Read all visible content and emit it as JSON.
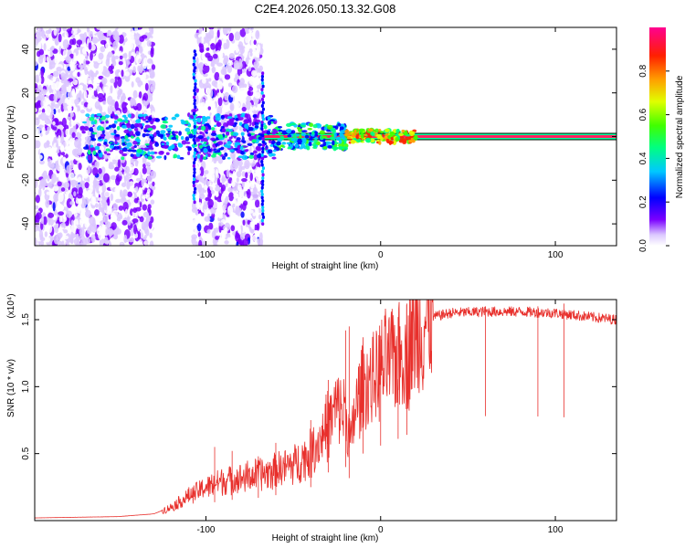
{
  "title": "C2E4.2026.050.13.32.G08",
  "chart_data": [
    {
      "type": "heatmap",
      "xlabel": "Height of straight line (km)",
      "ylabel": "Frequency (Hz)",
      "xlim": [
        -198,
        135
      ],
      "ylim": [
        -50,
        50
      ],
      "x_ticks": [
        -100,
        0,
        100
      ],
      "y_ticks": [
        -40,
        -20,
        0,
        20,
        40
      ],
      "colorbar": {
        "label": "Normalized spectral amplitude",
        "range": [
          0,
          1
        ],
        "ticks": [
          "0.0",
          "0.2",
          "0.4",
          "0.6",
          "0.8"
        ]
      },
      "features": [
        {
          "kind": "broadband-noise",
          "x_range": [
            -198,
            -130
          ],
          "freq_range": [
            -50,
            50
          ]
        },
        {
          "kind": "broadband-noise",
          "x_range": [
            -107,
            -68
          ],
          "freq_range": [
            -50,
            50
          ]
        },
        {
          "kind": "narrow-band-signal",
          "x_range": [
            -68,
            135
          ],
          "center_freq": 0,
          "peak_amplitude": 1.0
        }
      ]
    },
    {
      "type": "line",
      "xlabel": "Height of straight line (km)",
      "ylabel": "SNR (10 * v/v)",
      "y_scale_label": "(x10⁴)",
      "xlim": [
        -198,
        135
      ],
      "ylim": [
        0,
        1.65
      ],
      "x_ticks": [
        -100,
        0,
        100
      ],
      "y_ticks": [
        "0.5",
        "1.0",
        "1.5"
      ],
      "series": [
        {
          "color": "#e8302c",
          "envelope": [
            [
              -198,
              0.02
            ],
            [
              -150,
              0.03
            ],
            [
              -130,
              0.05
            ],
            [
              -120,
              0.1
            ],
            [
              -110,
              0.18
            ],
            [
              -100,
              0.25
            ],
            [
              -90,
              0.3
            ],
            [
              -80,
              0.32
            ],
            [
              -70,
              0.34
            ],
            [
              -60,
              0.38
            ],
            [
              -50,
              0.42
            ],
            [
              -40,
              0.5
            ],
            [
              -35,
              0.6
            ],
            [
              -30,
              0.72
            ],
            [
              -25,
              0.85
            ],
            [
              -20,
              0.8
            ],
            [
              -17,
              0.55
            ],
            [
              -15,
              0.8
            ],
            [
              -10,
              1.0
            ],
            [
              -5,
              1.05
            ],
            [
              0,
              1.12
            ],
            [
              5,
              1.18
            ],
            [
              10,
              1.22
            ],
            [
              15,
              1.28
            ],
            [
              20,
              1.38
            ],
            [
              25,
              1.48
            ],
            [
              30,
              1.52
            ],
            [
              40,
              1.55
            ],
            [
              60,
              1.56
            ],
            [
              80,
              1.56
            ],
            [
              100,
              1.55
            ],
            [
              120,
              1.52
            ],
            [
              135,
              1.5
            ]
          ],
          "spikes": [
            [
              -95,
              0.55
            ],
            [
              -85,
              0.52
            ],
            [
              -70,
              0.48
            ],
            [
              -60,
              0.58
            ],
            [
              -40,
              0.75
            ],
            [
              -30,
              1.05
            ],
            [
              -30,
              0.92
            ],
            [
              -20,
              1.42
            ],
            [
              -18,
              1.45
            ],
            [
              -10,
              1.3
            ],
            [
              0,
              1.38
            ],
            [
              10,
              1.52
            ],
            [
              15,
              1.62
            ],
            [
              60,
              1.6
            ],
            [
              90,
              1.6
            ],
            [
              105,
              1.62
            ]
          ]
        }
      ]
    }
  ]
}
